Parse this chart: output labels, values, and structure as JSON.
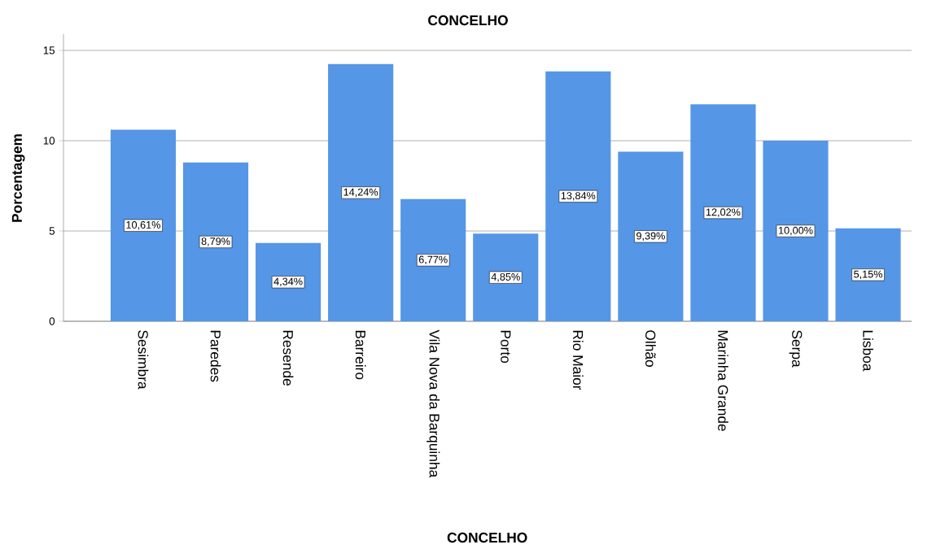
{
  "chart_data": {
    "type": "bar",
    "title": "CONCELHO",
    "xlabel": "CONCELHO",
    "ylabel": "Porcentagem",
    "categories": [
      "Sesimbra",
      "Paredes",
      "Resende",
      "Barreiro",
      "Vila Nova da Barquinha",
      "Porto",
      "Rio Maior",
      "Olhão",
      "Marinha Grande",
      "Serpa",
      "Lisboa"
    ],
    "values": [
      10.61,
      8.79,
      4.34,
      14.24,
      6.77,
      4.85,
      13.84,
      9.39,
      12.02,
      10.0,
      5.15
    ],
    "value_labels": [
      "10,61%",
      "8,79%",
      "4,34%",
      "14,24%",
      "6,77%",
      "4,85%",
      "13,84%",
      "9,39%",
      "12,02%",
      "10,00%",
      "5,15%"
    ],
    "color": "#5596e6",
    "ylim": [
      0,
      15.9
    ],
    "yticks": [
      0,
      5,
      10,
      15
    ],
    "grid": "y"
  }
}
